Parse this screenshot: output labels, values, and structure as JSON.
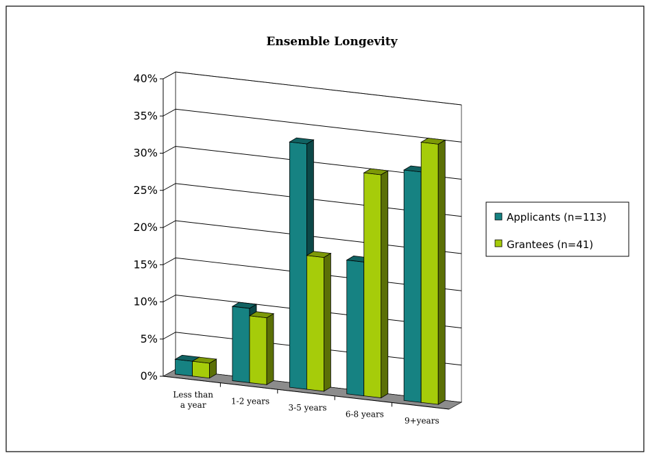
{
  "chart_data": {
    "type": "bar",
    "title": "Ensemble Longevity",
    "categories": [
      "Less than a year",
      "1-2 years",
      "3-5 years",
      "6-8 years",
      "9+years"
    ],
    "series": [
      {
        "name": "Applicants (n=113)",
        "values": [
          2,
          10,
          33,
          18,
          31
        ],
        "color": "#168282"
      },
      {
        "name": "Grantees (n=41)",
        "values": [
          2,
          9,
          18,
          30,
          35
        ],
        "color": "#a6cc0a"
      }
    ],
    "ylim": [
      0,
      40
    ],
    "yticks": [
      "0%",
      "5%",
      "10%",
      "15%",
      "20%",
      "25%",
      "30%",
      "35%",
      "40%"
    ],
    "grid": true,
    "legend_position": "right",
    "style": "3d-clustered-column"
  }
}
